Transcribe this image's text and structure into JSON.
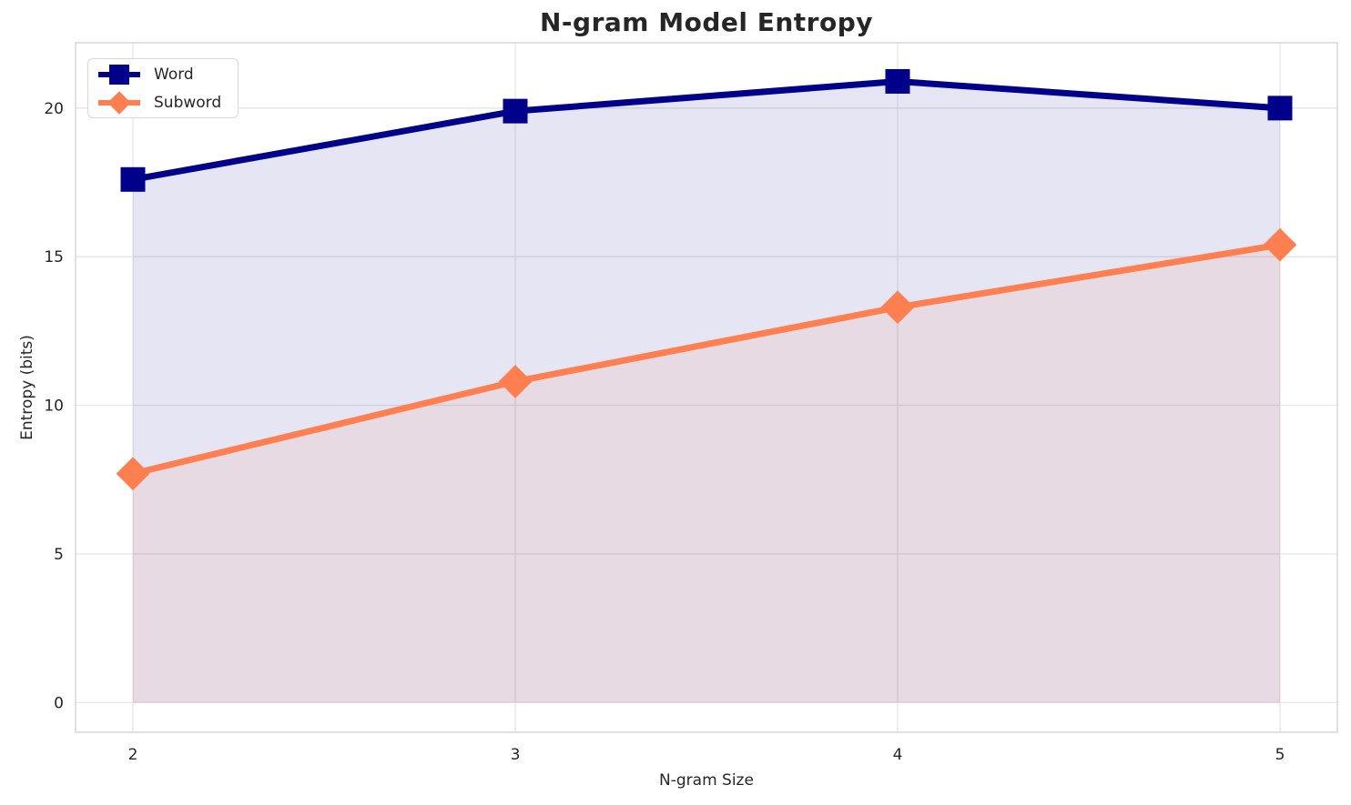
{
  "chart_data": {
    "type": "line",
    "title": "N-gram Model Entropy",
    "xlabel": "N-gram Size",
    "ylabel": "Entropy (bits)",
    "x": [
      2,
      3,
      4,
      5
    ],
    "series": [
      {
        "name": "Word",
        "values": [
          17.6,
          19.9,
          20.9,
          20.0
        ],
        "color": "#00008B",
        "marker": "square",
        "fill_to_zero": true,
        "fill_alpha": 0.1
      },
      {
        "name": "Subword",
        "values": [
          7.7,
          10.8,
          13.3,
          15.4
        ],
        "color": "#FF7F50",
        "marker": "diamond",
        "fill_to_zero": true,
        "fill_alpha": 0.1
      }
    ],
    "xticks": [
      2,
      3,
      4,
      5
    ],
    "yticks": [
      0,
      5,
      10,
      15,
      20
    ],
    "xtick_labels": [
      "2",
      "3",
      "4",
      "5"
    ],
    "ytick_labels": [
      "0",
      "5",
      "10",
      "15",
      "20"
    ],
    "xlim": [
      1.85,
      5.15
    ],
    "ylim": [
      -1.0,
      22.2
    ],
    "grid": true,
    "legend_position": "upper left",
    "style": {
      "grid_color": "#e7e7e7",
      "spine_color": "#d4d4d4",
      "text_color": "#262626",
      "background": "#ffffff",
      "line_width": 7
    }
  }
}
